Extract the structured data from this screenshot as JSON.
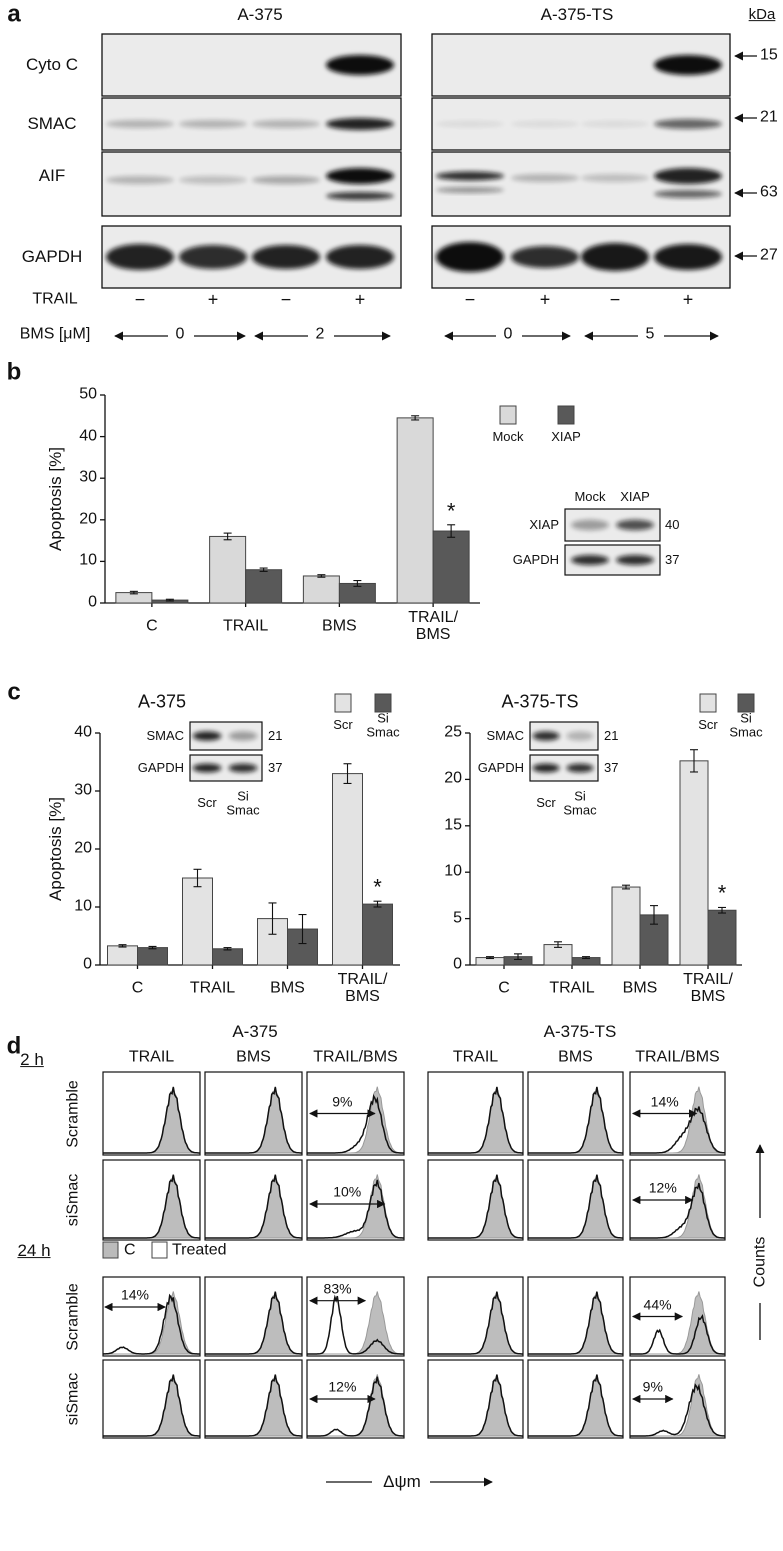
{
  "panel_a": {
    "label": "a",
    "cell_lines": [
      "A-375",
      "A-375-TS"
    ],
    "unit": "kDa",
    "blots": [
      {
        "name": "Cyto C",
        "kda": 15
      },
      {
        "name": "SMAC",
        "kda": 21
      },
      {
        "name": "AIF",
        "kda": 63
      },
      {
        "name": "GAPDH",
        "kda": 27
      }
    ],
    "trail_label": "TRAIL",
    "trail": [
      "−",
      "+",
      "−",
      "+",
      "−",
      "+",
      "−",
      "+"
    ],
    "bms_label": "BMS [μM]",
    "bms_doses": [
      0,
      2,
      0,
      5
    ]
  },
  "panel_b": {
    "label": "b",
    "inset": {
      "columns": [
        "Mock",
        "XIAP"
      ],
      "rows": [
        {
          "name": "XIAP",
          "kda": 40
        },
        {
          "name": "GAPDH",
          "kda": 37
        }
      ]
    }
  },
  "panel_c": {
    "label": "c",
    "insets": [
      {
        "columns": [
          "Scr",
          "Si Smac"
        ],
        "rows": [
          {
            "name": "SMAC",
            "kda": 21
          },
          {
            "name": "GAPDH",
            "kda": 37
          }
        ]
      },
      {
        "columns": [
          "Scr",
          "Si Smac"
        ],
        "rows": [
          {
            "name": "SMAC",
            "kda": 21
          },
          {
            "name": "GAPDH",
            "kda": 37
          }
        ]
      }
    ]
  },
  "panel_d": {
    "label": "d",
    "cell_lines": [
      "A-375",
      "A-375-TS"
    ],
    "columns": [
      "TRAIL",
      "BMS",
      "TRAIL/BMS"
    ],
    "times": [
      "2 h",
      "24 h"
    ],
    "rows": [
      "Scramble",
      "siSmac"
    ],
    "legend": [
      "C",
      "Treated"
    ],
    "y_label": "Counts",
    "x_label": "Δψm",
    "percentages": [
      [
        null,
        null,
        "9%",
        null,
        null,
        "14%"
      ],
      [
        null,
        null,
        "10%",
        null,
        null,
        "12%"
      ],
      [
        "14%",
        null,
        "83%",
        null,
        null,
        "44%"
      ],
      [
        null,
        null,
        "12%",
        null,
        null,
        "9%"
      ]
    ]
  },
  "chart_data": [
    {
      "type": "bar",
      "y_label": "Apoptosis [%]",
      "categories": [
        "C",
        "TRAIL",
        "BMS",
        "TRAIL/ BMS"
      ],
      "series": [
        {
          "name": "Mock",
          "color": "#d9d9d9",
          "values": [
            2.5,
            16,
            6.5,
            44.5
          ],
          "errors": [
            0.3,
            0.8,
            0.3,
            0.5
          ]
        },
        {
          "name": "XIAP",
          "color": "#595959",
          "values": [
            0.7,
            8,
            4.7,
            17.3
          ],
          "errors": [
            0.2,
            0.4,
            0.7,
            1.5
          ]
        }
      ],
      "ylim": [
        0,
        50
      ],
      "yticks": [
        0,
        10,
        20,
        30,
        40,
        50
      ],
      "annotation": "*"
    },
    {
      "type": "bar",
      "title": "A-375",
      "y_label": "Apoptosis [%]",
      "categories": [
        "C",
        "TRAIL",
        "BMS",
        "TRAIL/ BMS"
      ],
      "series": [
        {
          "name": "Scr",
          "color": "#e3e3e3",
          "values": [
            3.3,
            15,
            8,
            33
          ],
          "errors": [
            0.2,
            1.5,
            2.7,
            1.7
          ]
        },
        {
          "name": "Si Smac",
          "color": "#595959",
          "values": [
            3,
            2.8,
            6.2,
            10.5
          ],
          "errors": [
            0.2,
            0.2,
            2.5,
            0.5
          ]
        }
      ],
      "ylim": [
        0,
        40
      ],
      "yticks": [
        0,
        10,
        20,
        30,
        40
      ],
      "annotation": "*"
    },
    {
      "type": "bar",
      "title": "A-375-TS",
      "categories": [
        "C",
        "TRAIL",
        "BMS",
        "TRAIL/ BMS"
      ],
      "series": [
        {
          "name": "Scr",
          "color": "#e3e3e3",
          "values": [
            0.8,
            2.2,
            8.4,
            22
          ],
          "errors": [
            0.1,
            0.3,
            0.2,
            1.2
          ]
        },
        {
          "name": "Si Smac",
          "color": "#595959",
          "values": [
            0.9,
            0.8,
            5.4,
            5.9
          ],
          "errors": [
            0.3,
            0.1,
            1,
            0.3
          ]
        }
      ],
      "ylim": [
        0,
        25
      ],
      "yticks": [
        0,
        5,
        10,
        15,
        20,
        25
      ],
      "annotation": "*"
    }
  ]
}
